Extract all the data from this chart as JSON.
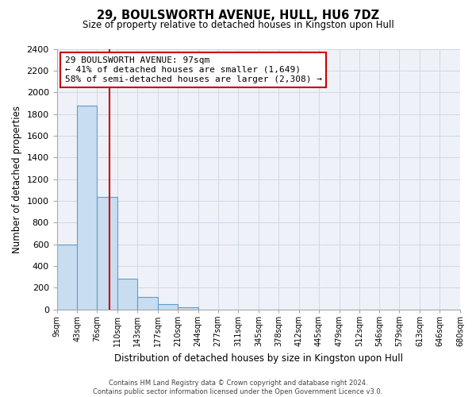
{
  "title": "29, BOULSWORTH AVENUE, HULL, HU6 7DZ",
  "subtitle": "Size of property relative to detached houses in Kingston upon Hull",
  "xlabel": "Distribution of detached houses by size in Kingston upon Hull",
  "ylabel": "Number of detached properties",
  "bin_edges": [
    9,
    43,
    76,
    110,
    143,
    177,
    210,
    244,
    277,
    311,
    345,
    378,
    412,
    445,
    479,
    512,
    546,
    579,
    613,
    646,
    680
  ],
  "bin_labels": [
    "9sqm",
    "43sqm",
    "76sqm",
    "110sqm",
    "143sqm",
    "177sqm",
    "210sqm",
    "244sqm",
    "277sqm",
    "311sqm",
    "345sqm",
    "378sqm",
    "412sqm",
    "445sqm",
    "479sqm",
    "512sqm",
    "546sqm",
    "579sqm",
    "613sqm",
    "646sqm",
    "680sqm"
  ],
  "bar_heights": [
    600,
    1880,
    1035,
    280,
    115,
    50,
    20,
    0,
    0,
    0,
    0,
    0,
    0,
    0,
    0,
    0,
    0,
    0,
    0,
    0
  ],
  "bar_color": "#c8ddf0",
  "bar_edge_color": "#6699cc",
  "property_line_x": 97,
  "property_line_color": "#cc0000",
  "annotation_title": "29 BOULSWORTH AVENUE: 97sqm",
  "annotation_line1": "← 41% of detached houses are smaller (1,649)",
  "annotation_line2": "58% of semi-detached houses are larger (2,308) →",
  "annotation_box_color": "#ffffff",
  "annotation_box_edge": "#cc0000",
  "ylim": [
    0,
    2400
  ],
  "yticks": [
    0,
    200,
    400,
    600,
    800,
    1000,
    1200,
    1400,
    1600,
    1800,
    2000,
    2200,
    2400
  ],
  "footer_line1": "Contains HM Land Registry data © Crown copyright and database right 2024.",
  "footer_line2": "Contains public sector information licensed under the Open Government Licence v3.0.",
  "background_color": "#ffffff",
  "grid_color": "#d0d8e4",
  "plot_bg_color": "#eef2f8"
}
